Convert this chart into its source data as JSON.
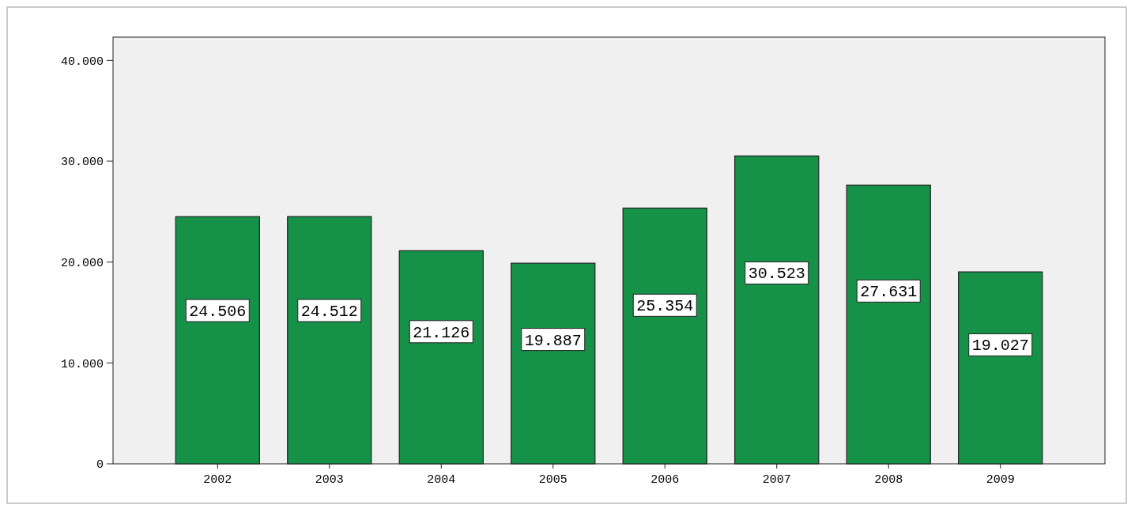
{
  "chart_data": {
    "type": "bar",
    "categories": [
      "2002",
      "2003",
      "2004",
      "2005",
      "2006",
      "2007",
      "2008",
      "2009"
    ],
    "values": [
      24506,
      24512,
      21126,
      19887,
      25354,
      30523,
      27631,
      19027
    ],
    "value_labels": [
      "24.506",
      "24.512",
      "21.126",
      "19.887",
      "25.354",
      "30.523",
      "27.631",
      "19.027"
    ],
    "color": "#169148",
    "ylim": [
      0,
      42300
    ],
    "yticks": [
      {
        "value": 0,
        "label": "0"
      },
      {
        "value": 10000,
        "label": "10.000"
      },
      {
        "value": 20000,
        "label": "20.000"
      },
      {
        "value": 30000,
        "label": "30.000"
      },
      {
        "value": 40000,
        "label": "40.000"
      }
    ],
    "grid": false
  }
}
